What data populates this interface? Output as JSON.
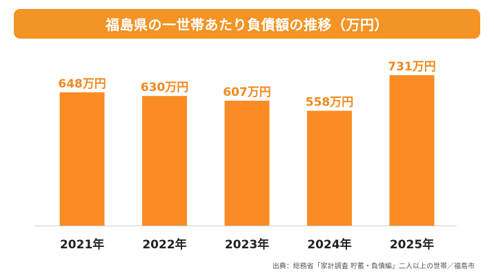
{
  "title": "福島県の一世帯あたり負債額の推移（万円）",
  "source": "出典：総務省「家計調査 貯蓄・負債編」二人以上の世帯／福島市",
  "colors": {
    "bar": "#fb8b24",
    "banner": "#f39425",
    "label": "#f08a1e",
    "axis_text": "#222222"
  },
  "chart_data": {
    "type": "bar",
    "title": "福島県の一世帯あたり負債額の推移（万円）",
    "unit": "万円",
    "categories": [
      "2021年",
      "2022年",
      "2023年",
      "2024年",
      "2025年"
    ],
    "values": [
      648,
      630,
      607,
      558,
      731
    ],
    "data_labels": [
      "648万円",
      "630万円",
      "607万円",
      "558万円",
      "731万円"
    ],
    "xlabel": "",
    "ylabel": "",
    "ylim": [
      0,
      731
    ],
    "grid": false,
    "legend": "none"
  }
}
